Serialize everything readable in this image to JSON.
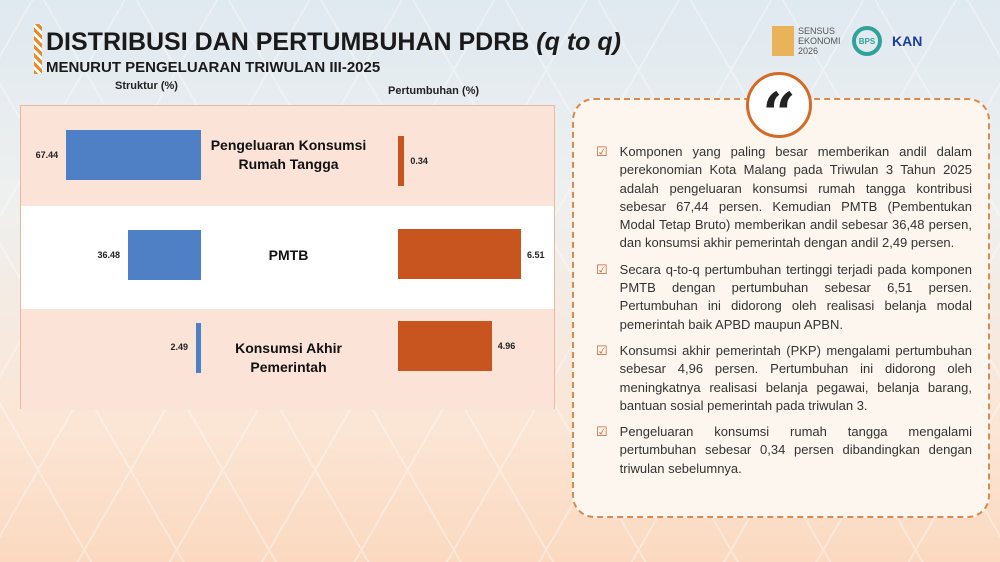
{
  "header": {
    "title": "DISTRIBUSI DAN PERTUMBUHAN PDRB",
    "title_suffix": "(q to q)",
    "subtitle": "MENURUT PENGELUARAN TRIWULAN III-2025"
  },
  "logos": {
    "sensus": "SENSUS EKONOMI 2026",
    "kan": "KAN"
  },
  "chart_data": {
    "type": "bar",
    "orientation": "horizontal",
    "categories": [
      "Pengeluaran Konsumsi Rumah Tangga",
      "PMTB",
      "Konsumsi Akhir Pemerintah"
    ],
    "series": [
      {
        "name": "Struktur (%)",
        "values": [
          67.44,
          36.48,
          2.49
        ],
        "color": "#4f7fc4"
      },
      {
        "name": "Pertumbuhan (%)",
        "values": [
          0.34,
          6.51,
          4.96
        ],
        "color": "#c8541f"
      }
    ],
    "labels": {
      "struktur": [
        "67.44",
        "36.48",
        "2.49"
      ],
      "pertumbuhan": [
        "0.34",
        "6.51",
        "4.96"
      ]
    }
  },
  "quote_icon": "quote-icon",
  "points": [
    "Komponen yang paling besar memberikan andil dalam perekonomian Kota Malang pada Triwulan 3 Tahun 2025 adalah pengeluaran konsumsi rumah tangga kontribusi sebesar 67,44 persen. Kemudian PMTB (Pembentukan Modal Tetap Bruto) memberikan andil sebesar 36,48 persen, dan konsumsi akhir pemerintah dengan andil 2,49 persen.",
    "Secara q-to-q pertumbuhan tertinggi terjadi pada komponen PMTB dengan pertumbuhan sebesar 6,51 persen. Pertumbuhan ini didorong oleh realisasi belanja modal pemerintah baik APBD maupun APBN.",
    "Konsumsi akhir pemerintah (PKP) mengalami pertumbuhan sebesar 4,96 persen. Pertumbuhan ini didorong oleh meningkatnya realisasi belanja pegawai, belanja barang, bantuan sosial pemerintah pada triwulan 3.",
    "Pengeluaran konsumsi rumah tangga mengalami pertumbuhan sebesar 0,34 persen dibandingkan dengan triwulan sebelumnya."
  ]
}
